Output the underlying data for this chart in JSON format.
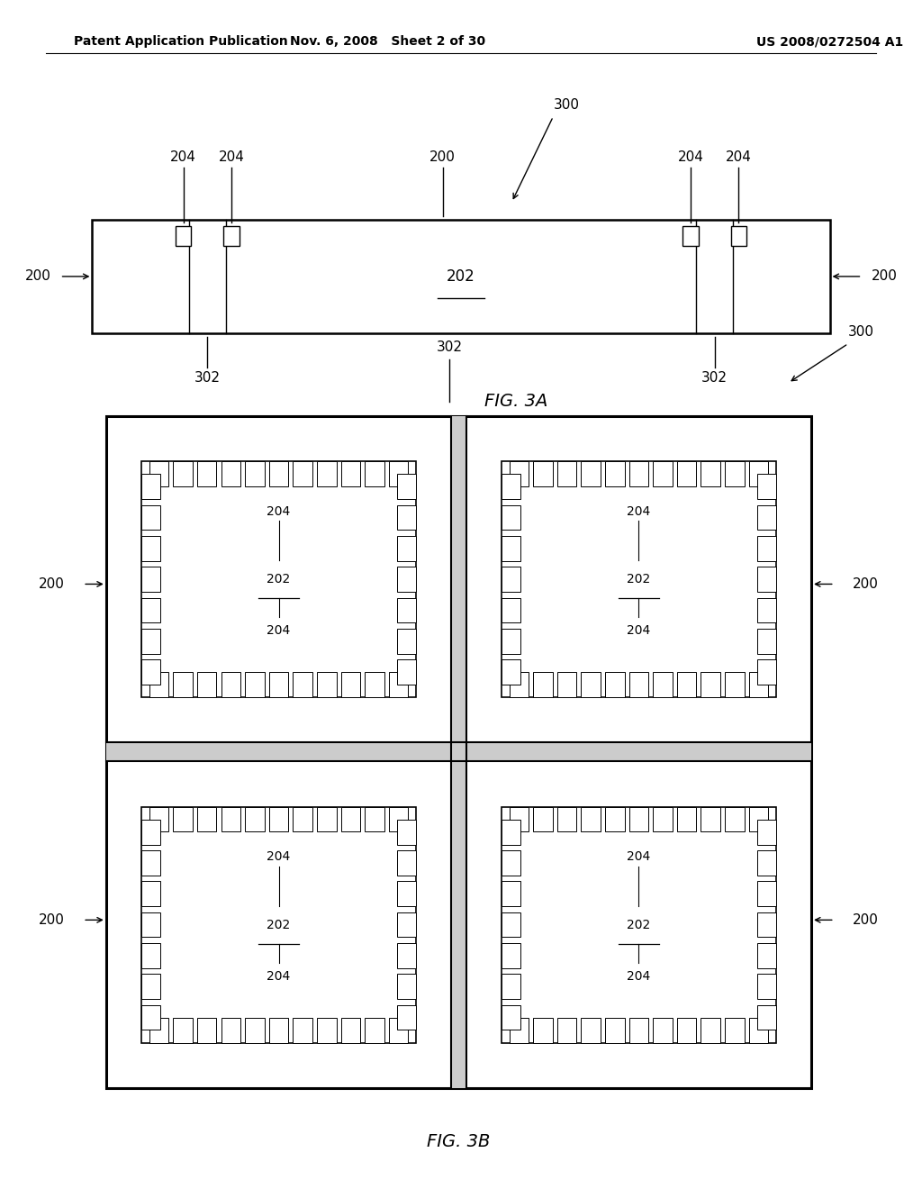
{
  "bg_color": "#ffffff",
  "header_left": "Patent Application Publication",
  "header_mid": "Nov. 6, 2008   Sheet 2 of 30",
  "header_right": "US 2008/0272504 A1",
  "lw_main": 1.8,
  "lw_thin": 1.0,
  "font_label": 11,
  "font_header": 10,
  "font_fig": 14
}
